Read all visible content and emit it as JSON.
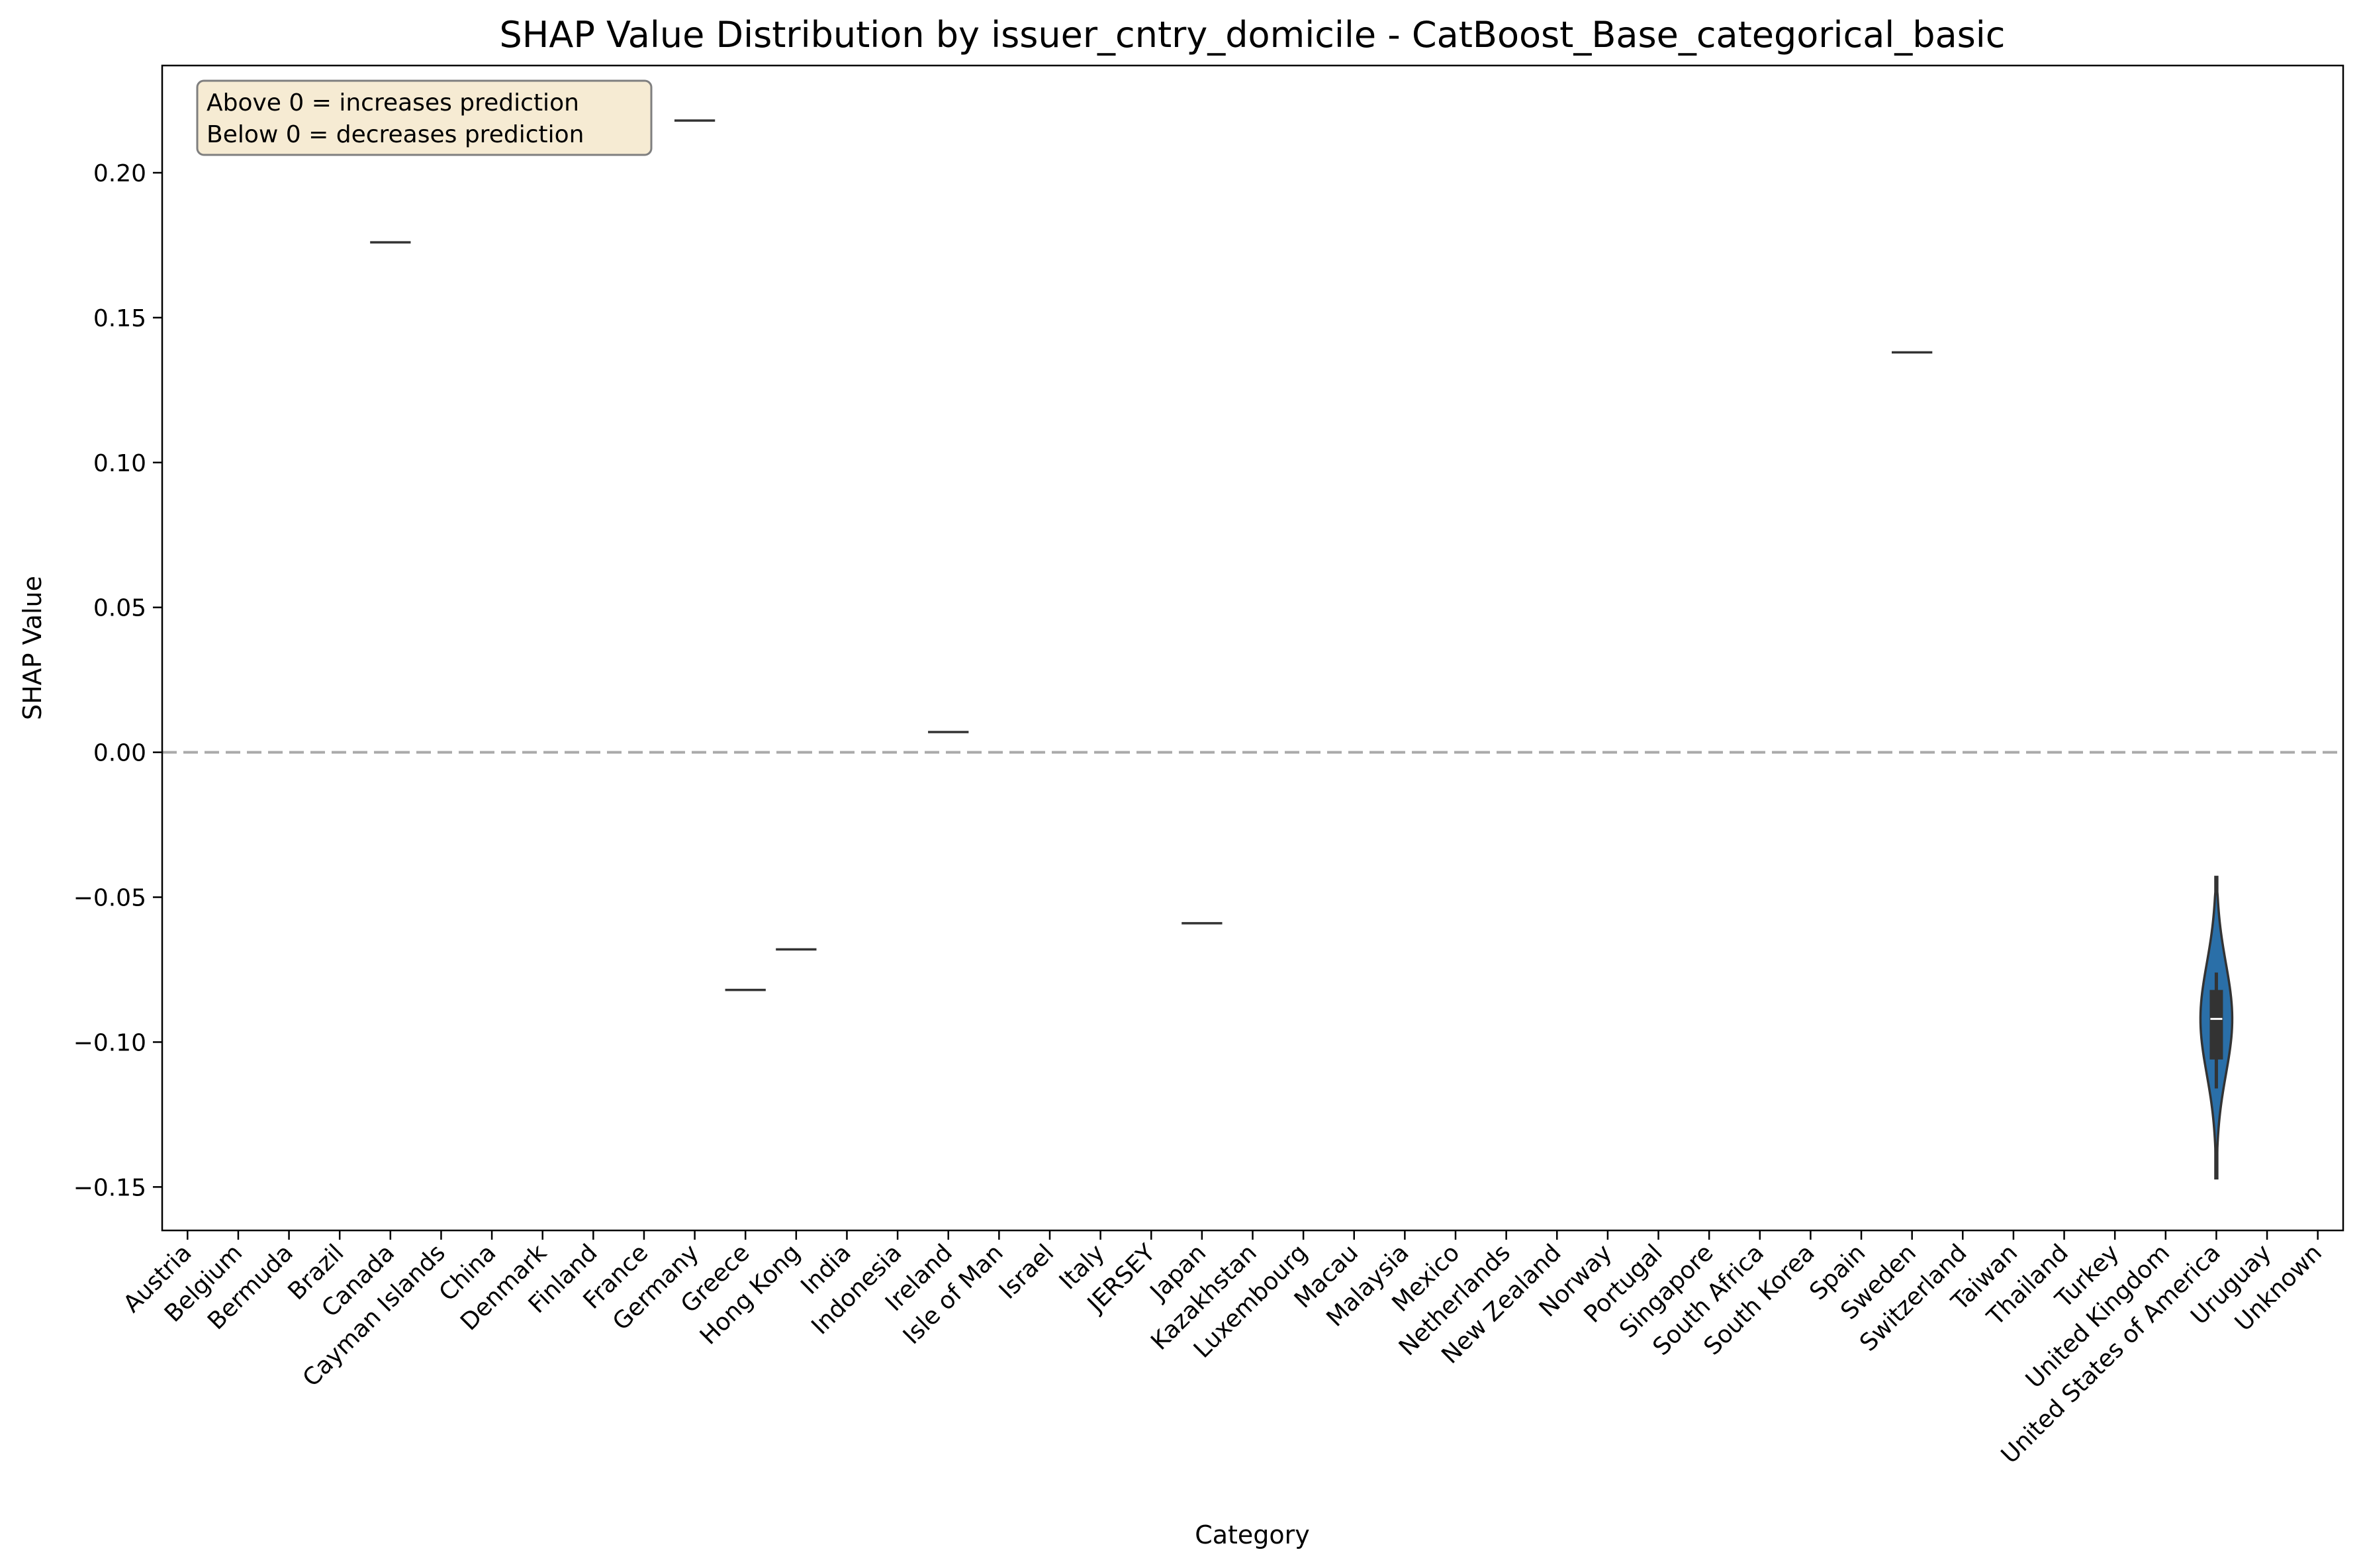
{
  "chart_data": {
    "type": "violin",
    "title": "SHAP Value Distribution by issuer_cntry_domicile - CatBoost_Base_categorical_basic",
    "xlabel": "Category",
    "ylabel": "SHAP Value",
    "ylim": [
      -0.165,
      0.237
    ],
    "yticks": [
      -0.15,
      -0.1,
      -0.05,
      0.0,
      0.05,
      0.1,
      0.15,
      0.2
    ],
    "ytick_labels": [
      "−0.15",
      "−0.10",
      "−0.05",
      "0.00",
      "0.05",
      "0.10",
      "0.15",
      "0.20"
    ],
    "reference_line": 0.0,
    "annotation": [
      "Above 0 = increases prediction",
      "Below 0 = decreases prediction"
    ],
    "categories": [
      "Austria",
      "Belgium",
      "Bermuda",
      "Brazil",
      "Canada",
      "Cayman Islands",
      "China",
      "Denmark",
      "Finland",
      "France",
      "Germany",
      "Greece",
      "Hong Kong",
      "India",
      "Indonesia",
      "Ireland",
      "Isle of Man",
      "Israel",
      "Italy",
      "JERSEY",
      "Japan",
      "Kazakhstan",
      "Luxembourg",
      "Macau",
      "Malaysia",
      "Mexico",
      "Netherlands",
      "New Zealand",
      "Norway",
      "Portugal",
      "Singapore",
      "South Africa",
      "South Korea",
      "Spain",
      "Sweden",
      "Switzerland",
      "Taiwan",
      "Thailand",
      "Turkey",
      "United Kingdom",
      "United States of America",
      "Uruguay",
      "Unknown"
    ],
    "single_values": [
      {
        "category": "Canada",
        "value": 0.176
      },
      {
        "category": "Germany",
        "value": 0.218
      },
      {
        "category": "Greece",
        "value": -0.082
      },
      {
        "category": "Hong Kong",
        "value": -0.068
      },
      {
        "category": "Ireland",
        "value": 0.007
      },
      {
        "category": "Japan",
        "value": -0.059
      },
      {
        "category": "Sweden",
        "value": 0.138
      }
    ],
    "distributions": [
      {
        "category": "United States of America",
        "min": -0.147,
        "max": -0.043,
        "q1": -0.106,
        "median": -0.092,
        "q3": -0.082,
        "whisker_low": -0.116,
        "whisker_high": -0.076
      }
    ],
    "colors": {
      "violin_fill": "#2a6fa8",
      "violin_edge": "#333333",
      "box": "#333333",
      "median": "#ffffff",
      "reference_line": "#aaaaaa",
      "annotation_bg": "#f6ebd3",
      "annotation_edge": "#7f7f7f"
    }
  }
}
